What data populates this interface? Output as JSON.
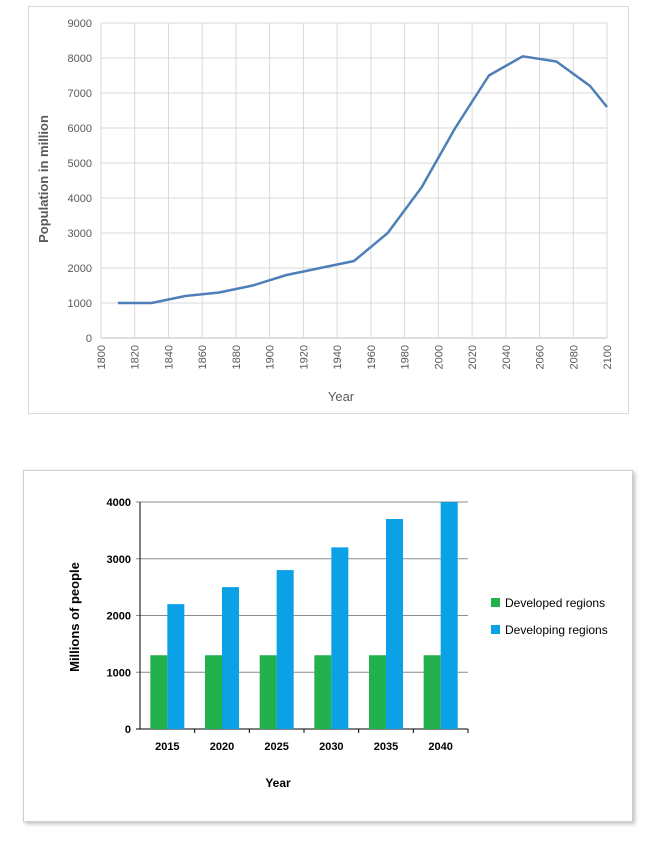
{
  "chart_data": [
    {
      "type": "line",
      "title": "",
      "xlabel": "Year",
      "ylabel": "Population in million",
      "xlim": [
        1800,
        2100
      ],
      "ylim": [
        0,
        9000
      ],
      "x_ticks": [
        "1800",
        "1820",
        "1840",
        "1860",
        "1880",
        "1900",
        "1920",
        "1940",
        "1960",
        "1980",
        "2000",
        "2020",
        "2040",
        "2060",
        "2080",
        "2100"
      ],
      "y_ticks": [
        "0",
        "1000",
        "2000",
        "3000",
        "4000",
        "5000",
        "6000",
        "7000",
        "8000",
        "9000"
      ],
      "grid": true,
      "legend": "none",
      "series": [
        {
          "color": "#4f7fb8",
          "x": [
            1810,
            1830,
            1840,
            1850,
            1870,
            1890,
            1910,
            1930,
            1950,
            1970,
            1990,
            2010,
            2030,
            2050,
            2070,
            2090,
            2100
          ],
          "y": [
            1000,
            1000,
            1100,
            1200,
            1300,
            1500,
            1800,
            2000,
            2200,
            3000,
            4300,
            6000,
            7500,
            8050,
            7900,
            7200,
            6600
          ]
        }
      ]
    },
    {
      "type": "bar",
      "title": "",
      "xlabel": "Year",
      "ylabel": "Millions of people",
      "categories": [
        "2015",
        "2020",
        "2025",
        "2030",
        "2035",
        "2040"
      ],
      "ylim": [
        0,
        4000
      ],
      "y_ticks": [
        "0",
        "1000",
        "2000",
        "3000",
        "4000"
      ],
      "grid": true,
      "legend": "right",
      "series": [
        {
          "name": "Developed regions",
          "color": "#22b14c",
          "values": [
            1300,
            1300,
            1300,
            1300,
            1300,
            1300
          ]
        },
        {
          "name": "Developing regions",
          "color": "#0ba1e6",
          "values": [
            2200,
            2500,
            2800,
            3200,
            3700,
            4000
          ]
        }
      ]
    }
  ]
}
